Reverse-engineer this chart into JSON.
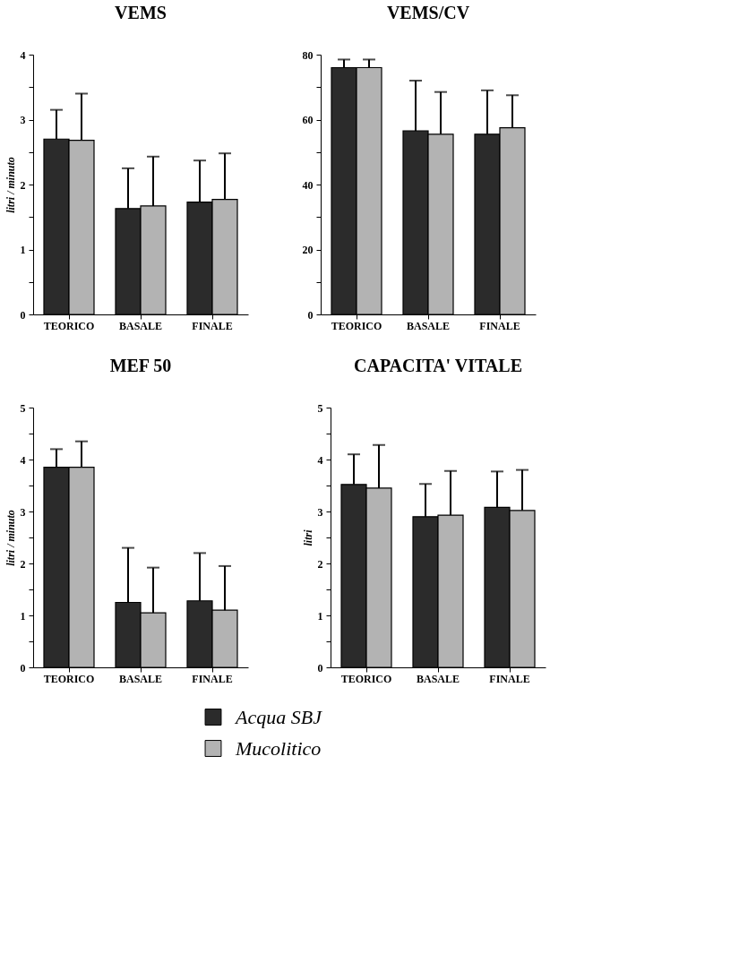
{
  "chart_data": [
    {
      "type": "bar",
      "title": "VEMS",
      "ylabel": "litri / minuto",
      "categories": [
        "TEORICO",
        "BASALE",
        "FINALE"
      ],
      "series": [
        {
          "name": "Acqua SBJ",
          "color": "#2b2b2b",
          "values": [
            2.7,
            1.63,
            1.73
          ],
          "errors": [
            [
              2.7,
              3.15
            ],
            [
              1.63,
              2.25
            ],
            [
              1.73,
              2.37
            ]
          ]
        },
        {
          "name": "Mucolitico",
          "color": "#b3b3b3",
          "values": [
            2.68,
            1.67,
            1.77
          ],
          "errors": [
            [
              2.68,
              3.4
            ],
            [
              1.67,
              2.43
            ],
            [
              1.77,
              2.48
            ]
          ]
        }
      ],
      "ylim": [
        0,
        4
      ],
      "yticks": [
        0,
        {
          "value": 0.5,
          "label": null
        },
        1,
        {
          "value": 1.5,
          "label": null
        },
        2,
        {
          "value": 2.5,
          "label": null
        },
        3,
        {
          "value": 3.5,
          "label": null
        },
        4
      ],
      "grid": false,
      "legend": "bottom"
    },
    {
      "type": "bar",
      "title": "VEMS/CV",
      "categories": [
        "TEORICO",
        "BASALE",
        "FINALE"
      ],
      "series": [
        {
          "name": "Acqua SBJ",
          "color": "#2b2b2b",
          "values": [
            76,
            56.5,
            55.5
          ],
          "errors": [
            [
              76,
              78.5
            ],
            [
              56.5,
              72
            ],
            [
              55.5,
              69
            ]
          ]
        },
        {
          "name": "Mucolitico",
          "color": "#b3b3b3",
          "values": [
            76,
            55.5,
            57.5
          ],
          "errors": [
            [
              76,
              78.5
            ],
            [
              55.5,
              68.5
            ],
            [
              57.5,
              67.5
            ]
          ]
        }
      ],
      "ylim": [
        0,
        80
      ],
      "yticks": [
        0,
        {
          "value": 10,
          "label": null
        },
        20,
        {
          "value": 30,
          "label": null
        },
        40,
        {
          "value": 50,
          "label": null
        },
        60,
        {
          "value": 70,
          "label": null
        },
        80
      ],
      "grid": false,
      "legend": "bottom"
    },
    {
      "type": "bar",
      "title": "MEF 50",
      "ylabel": "litri / minuto",
      "categories": [
        "TEORICO",
        "BASALE",
        "FINALE"
      ],
      "series": [
        {
          "name": "Acqua SBJ",
          "color": "#2b2b2b",
          "values": [
            3.85,
            1.25,
            1.28
          ],
          "errors": [
            [
              3.85,
              4.2
            ],
            [
              1.25,
              2.3
            ],
            [
              1.28,
              2.2
            ]
          ]
        },
        {
          "name": "Mucolitico",
          "color": "#b3b3b3",
          "values": [
            3.85,
            1.05,
            1.1
          ],
          "errors": [
            [
              3.85,
              4.35
            ],
            [
              1.05,
              1.92
            ],
            [
              1.1,
              1.95
            ]
          ]
        }
      ],
      "ylim": [
        0,
        5
      ],
      "yticks": [
        0,
        {
          "value": 0.5,
          "label": null
        },
        1,
        {
          "value": 1.5,
          "label": null
        },
        2,
        {
          "value": 2.5,
          "label": null
        },
        3,
        {
          "value": 3.5,
          "label": null
        },
        4,
        {
          "value": 4.5,
          "label": null
        },
        5
      ],
      "grid": false,
      "legend": "bottom"
    },
    {
      "type": "bar",
      "title": "CAPACITA' VITALE",
      "ylabel": "litri",
      "categories": [
        "TEORICO",
        "BASALE",
        "FINALE"
      ],
      "series": [
        {
          "name": "Acqua SBJ",
          "color": "#2b2b2b",
          "values": [
            3.52,
            2.9,
            3.08
          ],
          "errors": [
            [
              3.52,
              4.1
            ],
            [
              2.9,
              3.53
            ],
            [
              3.08,
              3.77
            ]
          ]
        },
        {
          "name": "Mucolitico",
          "color": "#b3b3b3",
          "values": [
            3.45,
            2.93,
            3.02
          ],
          "errors": [
            [
              3.45,
              4.28
            ],
            [
              2.93,
              3.78
            ],
            [
              3.02,
              3.8
            ]
          ]
        }
      ],
      "ylim": [
        0,
        5
      ],
      "yticks": [
        0,
        {
          "value": 0.5,
          "label": null
        },
        1,
        {
          "value": 1.5,
          "label": null
        },
        2,
        {
          "value": 2.5,
          "label": null
        },
        3,
        {
          "value": 3.5,
          "label": null
        },
        4,
        {
          "value": 4.5,
          "label": null
        },
        5
      ],
      "grid": false,
      "legend": "bottom"
    }
  ]
}
